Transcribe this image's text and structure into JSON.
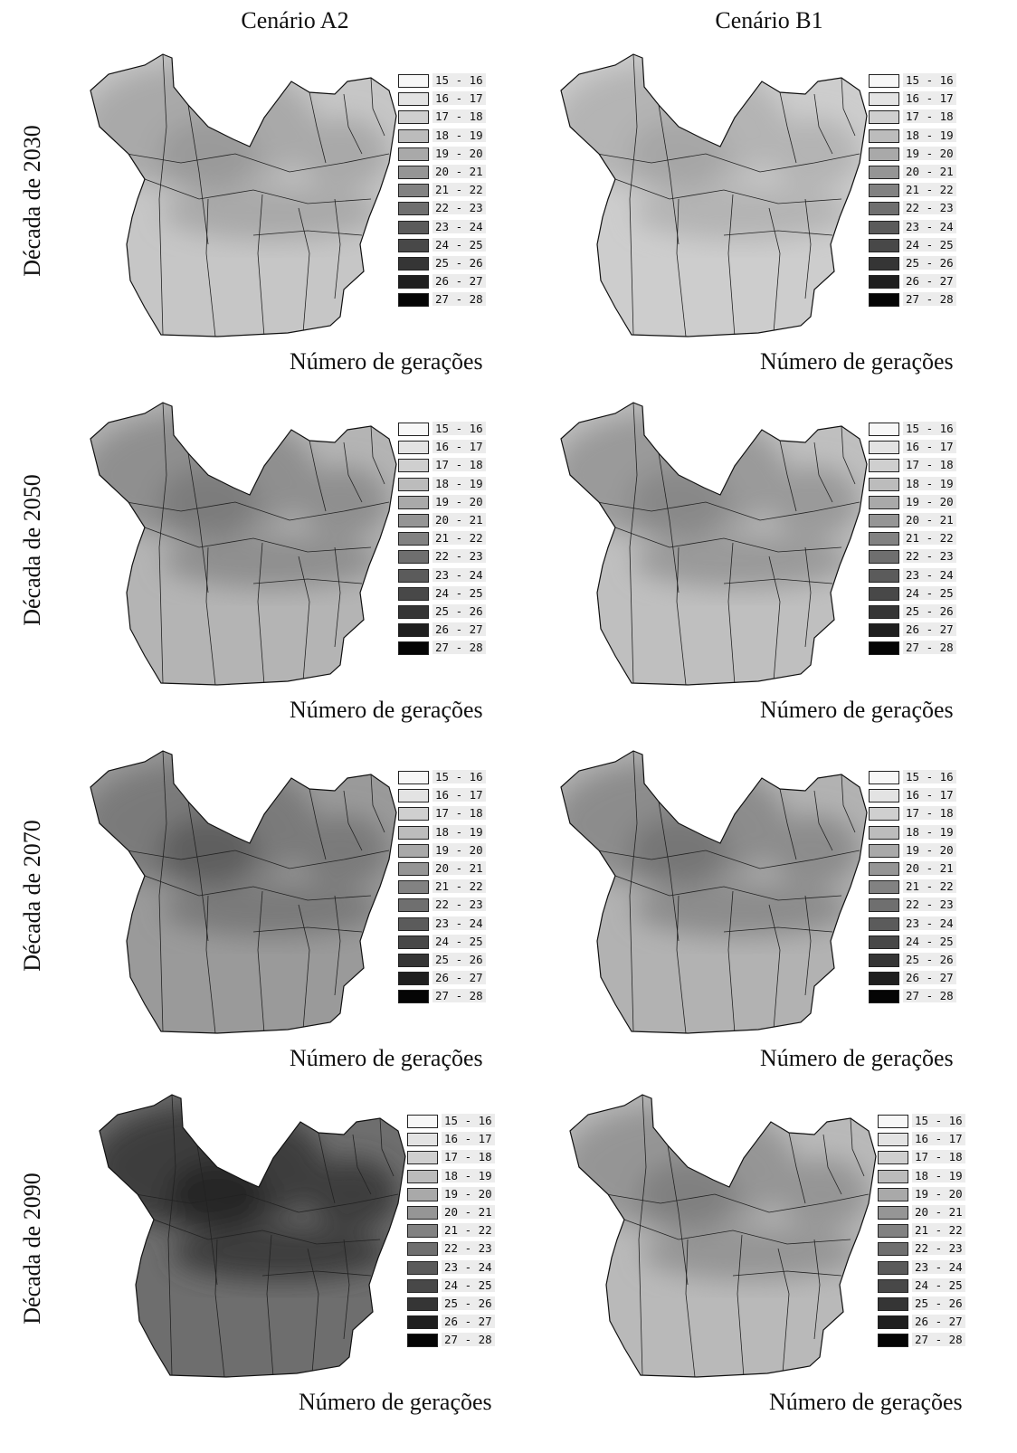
{
  "columns": [
    "Cenário A2",
    "Cenário B1"
  ],
  "rows": [
    "Década de 2030",
    "Década de 2050",
    "Década de 2070",
    "Década de 2090"
  ],
  "legend": {
    "title": "Número de gerações",
    "classes": [
      {
        "label": "15 - 16",
        "color": "#f7f7f7"
      },
      {
        "label": "16 - 17",
        "color": "#e3e3e3"
      },
      {
        "label": "17 - 18",
        "color": "#cfcfcf"
      },
      {
        "label": "18 - 19",
        "color": "#bcbcbc"
      },
      {
        "label": "19 - 20",
        "color": "#a9a9a9"
      },
      {
        "label": "20 - 21",
        "color": "#959595"
      },
      {
        "label": "21 - 22",
        "color": "#828282"
      },
      {
        "label": "22 - 23",
        "color": "#6f6f6f"
      },
      {
        "label": "23 - 24",
        "color": "#5b5b5b"
      },
      {
        "label": "24 - 25",
        "color": "#484848"
      },
      {
        "label": "25 - 26",
        "color": "#353535"
      },
      {
        "label": "26 - 27",
        "color": "#1f1f1f"
      },
      {
        "label": "27 - 28",
        "color": "#050505"
      }
    ]
  },
  "maps": [
    {
      "decade": "Década de 2030",
      "scenario": "Cenário A2",
      "base": "#c6c6c6",
      "north": "#a9a9a9",
      "core": "#9a9a9a"
    },
    {
      "decade": "Década de 2030",
      "scenario": "Cenário B1",
      "base": "#cdcdcd",
      "north": "#b4b4b4",
      "core": "#a6a6a6"
    },
    {
      "decade": "Década de 2050",
      "scenario": "Cenário A2",
      "base": "#b4b4b4",
      "north": "#8f8f8f",
      "core": "#7c7c7c"
    },
    {
      "decade": "Década de 2050",
      "scenario": "Cenário B1",
      "base": "#bfbfbf",
      "north": "#9a9a9a",
      "core": "#888888"
    },
    {
      "decade": "Década de 2070",
      "scenario": "Cenário A2",
      "base": "#9a9a9a",
      "north": "#7a7a7a",
      "core": "#5e5e5e"
    },
    {
      "decade": "Década de 2070",
      "scenario": "Cenário B1",
      "base": "#b2b2b2",
      "north": "#8c8c8c",
      "core": "#767676"
    },
    {
      "decade": "Década de 2090",
      "scenario": "Cenário A2",
      "base": "#6e6e6e",
      "north": "#3c3c3c",
      "core": "#262626"
    },
    {
      "decade": "Década de 2090",
      "scenario": "Cenário B1",
      "base": "#b9b9b9",
      "north": "#959595",
      "core": "#808080"
    }
  ]
}
